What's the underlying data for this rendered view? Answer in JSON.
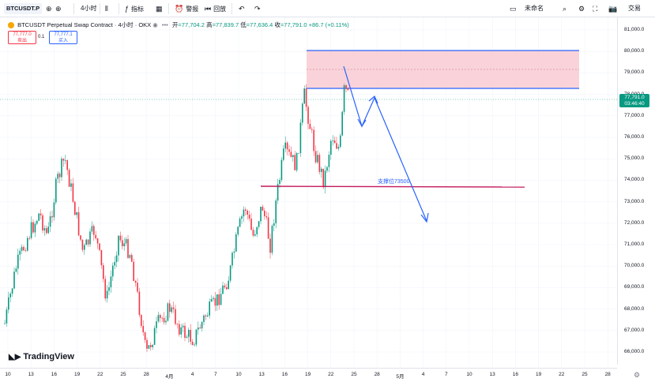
{
  "toolbar": {
    "symbol": "BTCUSDT.P",
    "interval": "4小时",
    "indicators": "指标",
    "alert": "警报",
    "replay": "回放",
    "layout_name": "未命名",
    "trade": "交易"
  },
  "legend": {
    "title": "BTCUSDT Perpetual Swap Contract · 4小时 · OKX",
    "open_label": "开",
    "open": "=77,704.2",
    "high_label": "高",
    "high": "=77,839.7",
    "low_label": "低",
    "low": "=77,636.4",
    "close_label": "收",
    "close": "=77,791.0",
    "change": "+86.7 (+0.11%)",
    "more": "•••"
  },
  "trade_buttons": {
    "sell_price": "77,777.0",
    "sell_label": "卖出",
    "spread": "0.1",
    "buy_price": "77,777.1",
    "buy_label": "买入"
  },
  "price_axis": {
    "ticks": [
      "81,000.0",
      "80,000.0",
      "79,000.0",
      "78,000.0",
      "77,000.0",
      "76,000.0",
      "75,000.0",
      "74,000.0",
      "73,000.0",
      "72,000.0",
      "71,000.0",
      "70,000.0",
      "69,000.0",
      "68,000.0",
      "67,000.0",
      "66,000.0"
    ],
    "current_price": "77,791.0",
    "countdown": "03:46:40"
  },
  "time_axis": {
    "ticks": [
      "10",
      "13",
      "16",
      "19",
      "22",
      "25",
      "28",
      "4月",
      "4",
      "7",
      "10",
      "13",
      "16",
      "19",
      "22",
      "25",
      "28",
      "5月",
      "4",
      "7",
      "10",
      "13",
      "16",
      "19",
      "22",
      "25",
      "28"
    ]
  },
  "annotations": {
    "support_label": "支撑位73500"
  },
  "branding": {
    "logo_text": "TradingView"
  },
  "colors": {
    "up": "#089981",
    "down": "#f23645",
    "zone_fill": "#f8c8cf",
    "zone_border": "#2962ff",
    "support_line": "#c2185b",
    "arrow": "#2962ff"
  }
}
